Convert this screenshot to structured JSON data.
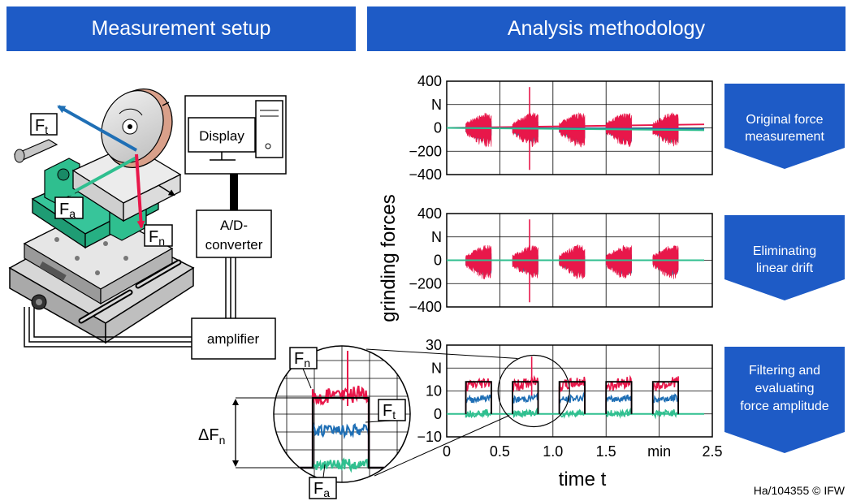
{
  "headers": {
    "left": "Measurement setup",
    "right": "Analysis methodology"
  },
  "setup": {
    "display_label": "Display",
    "converter_line1": "A/D-",
    "converter_line2": "converter",
    "amplifier_label": "amplifier",
    "ft": {
      "base": "F",
      "sub": "t"
    },
    "fa": {
      "base": "F",
      "sub": "a"
    },
    "fn": {
      "base": "F",
      "sub": "n"
    }
  },
  "steps": [
    {
      "line1": "Original force",
      "line2": "measurement",
      "line3": ""
    },
    {
      "line1": "Eliminating",
      "line2": "linear drift",
      "line3": ""
    },
    {
      "line1": "Filtering and",
      "line2": "evaluating",
      "line3": "force amplitude"
    }
  ],
  "chart_data": [
    {
      "type": "line",
      "yticks": [
        "400",
        "N",
        "0",
        "−200",
        "−400"
      ],
      "ylim": [
        -400,
        400
      ],
      "series": [
        {
          "color": "#e8174a"
        },
        {
          "color": "#1f6fb5"
        },
        {
          "color": "#2fbf8f"
        }
      ]
    },
    {
      "type": "line",
      "yticks": [
        "400",
        "N",
        "0",
        "−200",
        "−400"
      ],
      "ylim": [
        -400,
        400
      ],
      "series": [
        {
          "color": "#e8174a"
        },
        {
          "color": "#1f6fb5"
        },
        {
          "color": "#2fbf8f"
        }
      ]
    },
    {
      "type": "line",
      "yticks": [
        "30",
        "N",
        "10",
        "0",
        "−10"
      ],
      "ylim": [
        -10,
        30
      ],
      "xticks": [
        "0",
        "0.5",
        "1.0",
        "1.5",
        "min",
        "2.5"
      ],
      "xlim": [
        0,
        2.5
      ],
      "series": [
        {
          "color": "#e8174a"
        },
        {
          "color": "#1f6fb5"
        },
        {
          "color": "#2fbf8f"
        }
      ]
    }
  ],
  "ylabel": "grinding forces",
  "xlabel": "time t",
  "zoom": {
    "delta_label": {
      "base": "ΔF",
      "sub": "n"
    },
    "fn": {
      "base": "F",
      "sub": "n"
    },
    "ft": {
      "base": "F",
      "sub": "t"
    },
    "fa": {
      "base": "F",
      "sub": "a"
    }
  },
  "footer": "Ha/104355 © IFW"
}
